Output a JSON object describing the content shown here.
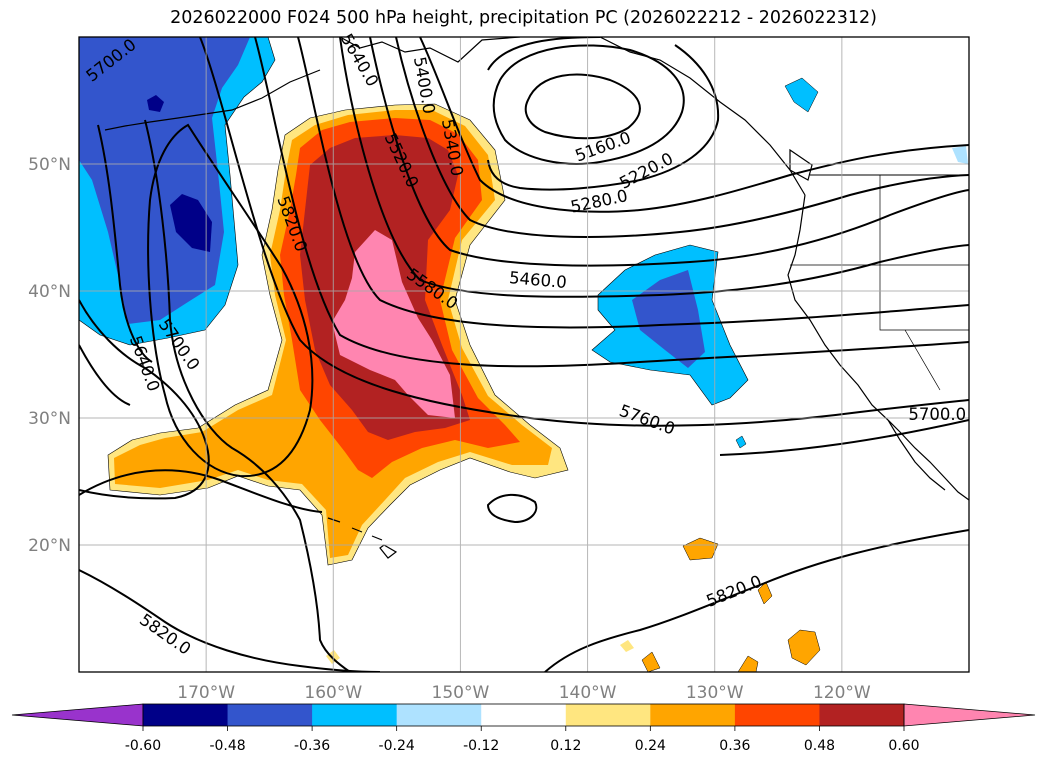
{
  "title": "2026022000 F024 500 hPa height, precipitation PC (2026022212 - 2026022312)",
  "map": {
    "lon_range": [
      -180,
      -110
    ],
    "lat_range": [
      10,
      60
    ],
    "lon_ticks": [
      {
        "value": -170,
        "label": "170°W"
      },
      {
        "value": -160,
        "label": "160°W"
      },
      {
        "value": -150,
        "label": "150°W"
      },
      {
        "value": -140,
        "label": "140°W"
      },
      {
        "value": -130,
        "label": "130°W"
      },
      {
        "value": -120,
        "label": "120°W"
      }
    ],
    "lat_ticks": [
      {
        "value": 20,
        "label": "20°N"
      },
      {
        "value": 30,
        "label": "30°N"
      },
      {
        "value": 40,
        "label": "40°N"
      },
      {
        "value": 50,
        "label": "50°N"
      }
    ],
    "grid": true,
    "contour_color": "#000000",
    "coastline_color": "#000000"
  },
  "contour_labels": [
    {
      "text": "5700.0",
      "lon": -177.5,
      "lat": 58.2,
      "angle": -38
    },
    {
      "text": "5640.0",
      "lon": -157.9,
      "lat": 58.2,
      "angle": 60
    },
    {
      "text": "5400.0",
      "lon": -152.8,
      "lat": 56.2,
      "angle": 80
    },
    {
      "text": "5340.0",
      "lon": -150.6,
      "lat": 51.3,
      "angle": 80
    },
    {
      "text": "5520.0",
      "lon": -154.6,
      "lat": 50.3,
      "angle": 65
    },
    {
      "text": "5160.0",
      "lon": -138.8,
      "lat": 51.4,
      "angle": -20
    },
    {
      "text": "5220.0",
      "lon": -135.4,
      "lat": 49.5,
      "angle": -28
    },
    {
      "text": "5280.0",
      "lon": -139.1,
      "lat": 47.1,
      "angle": -12
    },
    {
      "text": "5820.0",
      "lon": -163.2,
      "lat": 45.3,
      "angle": 70
    },
    {
      "text": "5460.0",
      "lon": -143.9,
      "lat": 40.9,
      "angle": 5
    },
    {
      "text": "5580.0",
      "lon": -152.2,
      "lat": 40.2,
      "angle": 35
    },
    {
      "text": "5700.0",
      "lon": -172.1,
      "lat": 35.8,
      "angle": 55
    },
    {
      "text": "5640.0",
      "lon": -174.8,
      "lat": 34.3,
      "angle": 70
    },
    {
      "text": "5760.0",
      "lon": -135.3,
      "lat": 29.9,
      "angle": 20
    },
    {
      "text": "5700.0",
      "lon": -112.5,
      "lat": 30.3,
      "angle": 0
    },
    {
      "text": "5820.0",
      "lon": -128.5,
      "lat": 16.4,
      "angle": -22
    },
    {
      "text": "5820.0",
      "lon": -173.2,
      "lat": 13.0,
      "angle": 35
    }
  ],
  "colorbar": {
    "levels": [
      "-0.60",
      "-0.48",
      "-0.36",
      "-0.24",
      "-0.12",
      "0.12",
      "0.24",
      "0.36",
      "0.48",
      "0.60"
    ],
    "colors": [
      "#9933CC",
      "#000088",
      "#3355CC",
      "#00BFFF",
      "#AEE2FF",
      "#FFFFFF",
      "#FFE680",
      "#FFA500",
      "#FF4500",
      "#B22222",
      "#FF85B0"
    ],
    "extend": "both"
  }
}
